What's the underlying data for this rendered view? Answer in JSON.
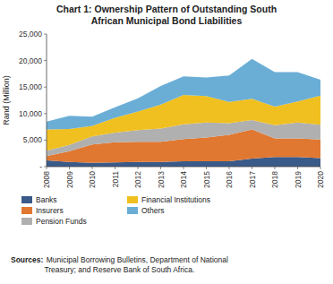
{
  "chart_data": {
    "type": "area",
    "stacked": true,
    "title": "Chart 1: Ownership Pattern of Outstanding South\nAfrican Municipal Bond Liabilities",
    "y_label": "Rand (Million)",
    "x": [
      2008,
      2009,
      2010,
      2011,
      2012,
      2013,
      2014,
      2015,
      2016,
      2017,
      2018,
      2019,
      2020
    ],
    "series": [
      {
        "name": "Banks",
        "color": "#3a5a8a",
        "values": [
          1200,
          900,
          700,
          800,
          900,
          900,
          1000,
          1000,
          1000,
          1500,
          1800,
          1800,
          1600
        ]
      },
      {
        "name": "Insurers",
        "color": "#e07832",
        "values": [
          800,
          2000,
          3500,
          3800,
          3800,
          3800,
          4200,
          4500,
          5000,
          5500,
          3500,
          3500,
          3500
        ]
      },
      {
        "name": "Pension Funds",
        "color": "#b0b0b0",
        "values": [
          1000,
          1200,
          1500,
          1800,
          2200,
          2500,
          2800,
          2800,
          2200,
          1800,
          2500,
          3000,
          2800
        ]
      },
      {
        "name": "Financial Institutions",
        "color": "#f0c020",
        "values": [
          4000,
          3000,
          2000,
          2800,
          3500,
          4500,
          5500,
          5000,
          4000,
          4000,
          3500,
          4000,
          5500
        ]
      },
      {
        "name": "Others",
        "color": "#6aaed6",
        "values": [
          1500,
          2500,
          1700,
          2000,
          2500,
          3500,
          3500,
          3500,
          5000,
          7500,
          6500,
          5500,
          3000
        ]
      }
    ],
    "xlim": [
      2008,
      2020
    ],
    "xticks": [
      2008,
      2009,
      2010,
      2011,
      2012,
      2013,
      2014,
      2015,
      2016,
      2017,
      2018,
      2019,
      2020
    ],
    "ylim": [
      0,
      25000
    ],
    "yticks": [
      {
        "value": 0,
        "label": "-"
      },
      {
        "value": 5000,
        "label": "5,000"
      },
      {
        "value": 10000,
        "label": "10,000"
      },
      {
        "value": 15000,
        "label": "15,000"
      },
      {
        "value": 20000,
        "label": "20,000"
      },
      {
        "value": 25000,
        "label": "25,000"
      }
    ],
    "grid": false,
    "legend": "below",
    "annotations": [
      "Sources:",
      " Municipal Borrowing Bulletins, Department of National\nTreasury; and Reserve Bank of South Africa."
    ]
  }
}
